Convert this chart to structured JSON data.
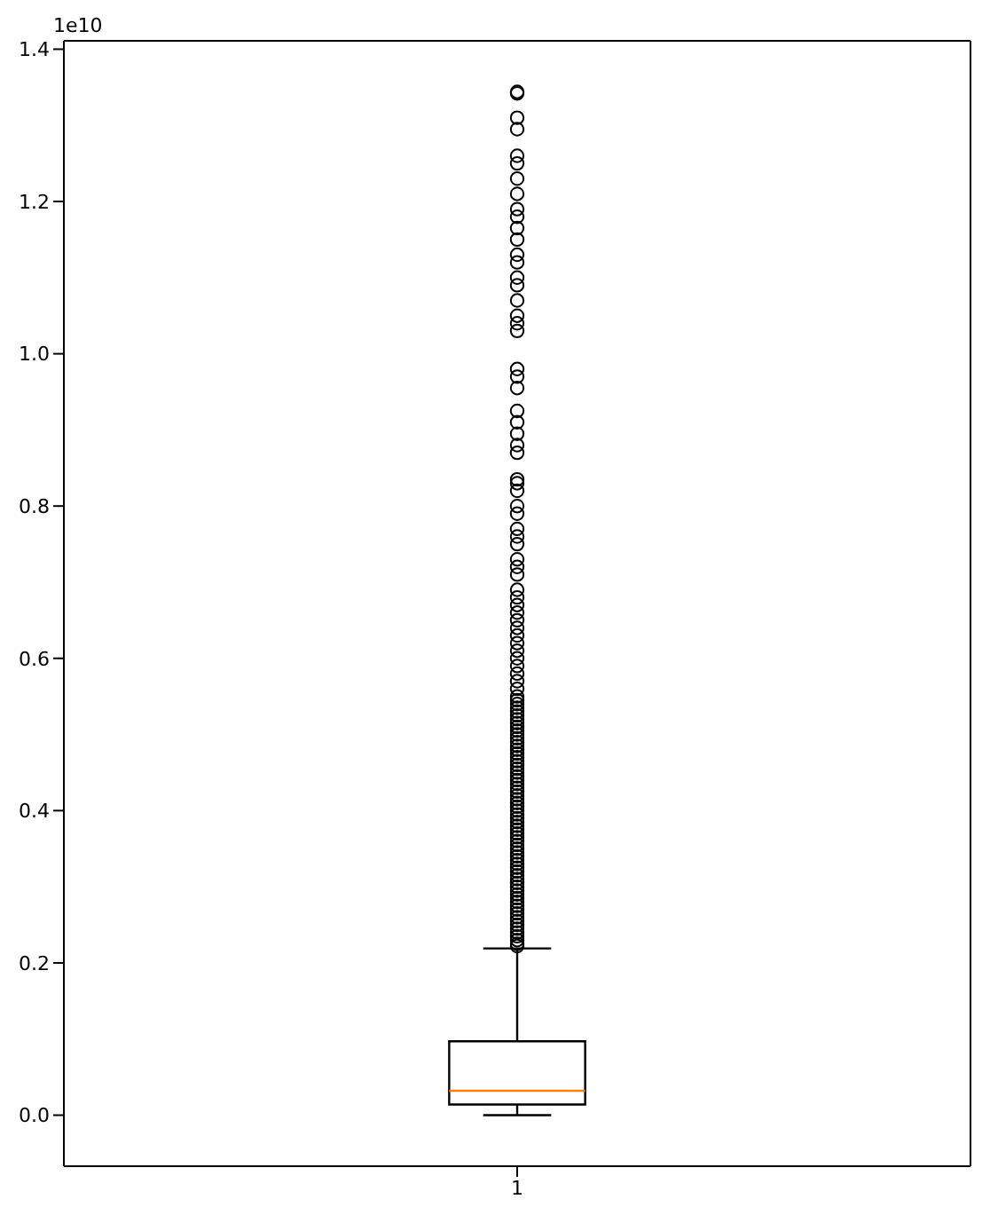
{
  "chart_data": {
    "type": "box",
    "categories": [
      "1"
    ],
    "ylim": [
      -0.067,
      1.411
    ],
    "yticks": [
      {
        "value": 0,
        "label": "0.0"
      },
      {
        "value": 0.2,
        "label": "0.2"
      },
      {
        "value": 0.4,
        "label": "0.4"
      },
      {
        "value": 0.6,
        "label": "0.6"
      },
      {
        "value": 0.8,
        "label": "0.8"
      },
      {
        "value": 1.0,
        "label": "1.0"
      },
      {
        "value": 1.2,
        "label": "1.2"
      },
      {
        "value": 1.4,
        "label": "1.4"
      }
    ],
    "annotations": [
      "1e10"
    ],
    "boxes": [
      {
        "low": 0,
        "q1": 0.014,
        "median": 0.032,
        "q3": 0.097,
        "high": 0.219,
        "outliers": [
          1.344,
          1.342,
          1.31,
          1.295,
          1.26,
          1.25,
          1.23,
          1.21,
          1.19,
          1.18,
          1.165,
          1.15,
          1.13,
          1.12,
          1.1,
          1.09,
          1.07,
          1.05,
          1.04,
          1.03,
          0.98,
          0.97,
          0.955,
          0.925,
          0.91,
          0.895,
          0.88,
          0.87,
          0.835,
          0.83,
          0.82,
          0.8,
          0.79,
          0.77,
          0.76,
          0.75,
          0.73,
          0.72,
          0.71,
          0.69,
          0.68,
          0.67,
          0.66,
          0.65,
          0.64,
          0.63,
          0.62,
          0.61,
          0.6,
          0.59,
          0.58,
          0.57,
          0.56,
          0.55,
          0.545,
          0.54,
          0.535,
          0.53,
          0.525,
          0.52,
          0.515,
          0.51,
          0.505,
          0.5,
          0.495,
          0.49,
          0.485,
          0.48,
          0.475,
          0.47,
          0.465,
          0.46,
          0.455,
          0.45,
          0.445,
          0.44,
          0.435,
          0.43,
          0.425,
          0.42,
          0.415,
          0.41,
          0.405,
          0.4,
          0.395,
          0.39,
          0.385,
          0.38,
          0.375,
          0.37,
          0.365,
          0.36,
          0.355,
          0.35,
          0.345,
          0.34,
          0.335,
          0.33,
          0.325,
          0.32,
          0.315,
          0.31,
          0.305,
          0.3,
          0.295,
          0.29,
          0.285,
          0.28,
          0.275,
          0.27,
          0.265,
          0.26,
          0.255,
          0.25,
          0.245,
          0.24,
          0.235,
          0.23,
          0.225,
          0.222
        ]
      }
    ]
  }
}
